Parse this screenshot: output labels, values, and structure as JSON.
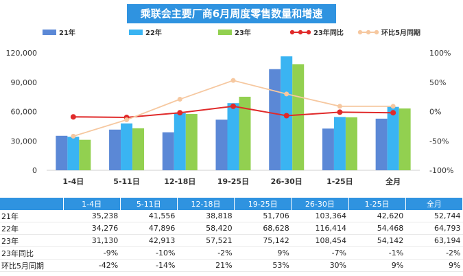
{
  "chart_data": {
    "type": "bar",
    "title": "乘联会主要厂商6月周度零售数量和增速",
    "categories": [
      "1-4日",
      "5-11日",
      "12-18日",
      "19-25日",
      "26-30日",
      "1-25日",
      "全月"
    ],
    "series": [
      {
        "name": "21年",
        "kind": "bar",
        "axis": "left",
        "color": "#5b88d6",
        "values": [
          35238,
          41556,
          38818,
          51706,
          103364,
          42620,
          52744
        ]
      },
      {
        "name": "22年",
        "kind": "bar",
        "axis": "left",
        "color": "#3ab4f2",
        "values": [
          34276,
          47896,
          58420,
          68628,
          116414,
          54468,
          64793
        ]
      },
      {
        "name": "23年",
        "kind": "bar",
        "axis": "left",
        "color": "#92d050",
        "values": [
          31130,
          42913,
          57521,
          75142,
          108454,
          54142,
          63194
        ]
      },
      {
        "name": "23年同比",
        "kind": "line",
        "axis": "right",
        "color": "#e02a2a",
        "values": [
          -9,
          -10,
          -2,
          9,
          -7,
          -1,
          -2
        ]
      },
      {
        "name": "环比5月同期",
        "kind": "line",
        "axis": "right",
        "color": "#f6c8a0",
        "values": [
          -42,
          -14,
          21,
          53,
          30,
          9,
          9
        ]
      }
    ],
    "ylim_left": [
      0,
      120000
    ],
    "yticks_left": [
      "0",
      "30,000",
      "60,000",
      "90,000",
      "120,000"
    ],
    "ylim_right": [
      -100,
      100
    ],
    "yticks_right": [
      "-100%",
      "-50%",
      "0%",
      "50%",
      "100%"
    ],
    "legend_position": "top",
    "grid": false
  },
  "table": {
    "headers": [
      "",
      "1-4日",
      "5-11日",
      "12-18日",
      "19-25日",
      "26-30日",
      "1-25日",
      "全月"
    ],
    "rows": [
      [
        "21年",
        "35,238",
        "41,556",
        "38,818",
        "51,706",
        "103,364",
        "42,620",
        "52,744"
      ],
      [
        "22年",
        "34,276",
        "47,896",
        "58,420",
        "68,628",
        "116,414",
        "54,468",
        "64,793"
      ],
      [
        "23年",
        "31,130",
        "42,913",
        "57,521",
        "75,142",
        "108,454",
        "54,142",
        "63,194"
      ],
      [
        "23年同比",
        "-9%",
        "-10%",
        "-2%",
        "9%",
        "-7%",
        "-1%",
        "-2%"
      ],
      [
        "环比5月同期",
        "-42%",
        "-14%",
        "21%",
        "53%",
        "30%",
        "9%",
        "9%"
      ]
    ]
  }
}
